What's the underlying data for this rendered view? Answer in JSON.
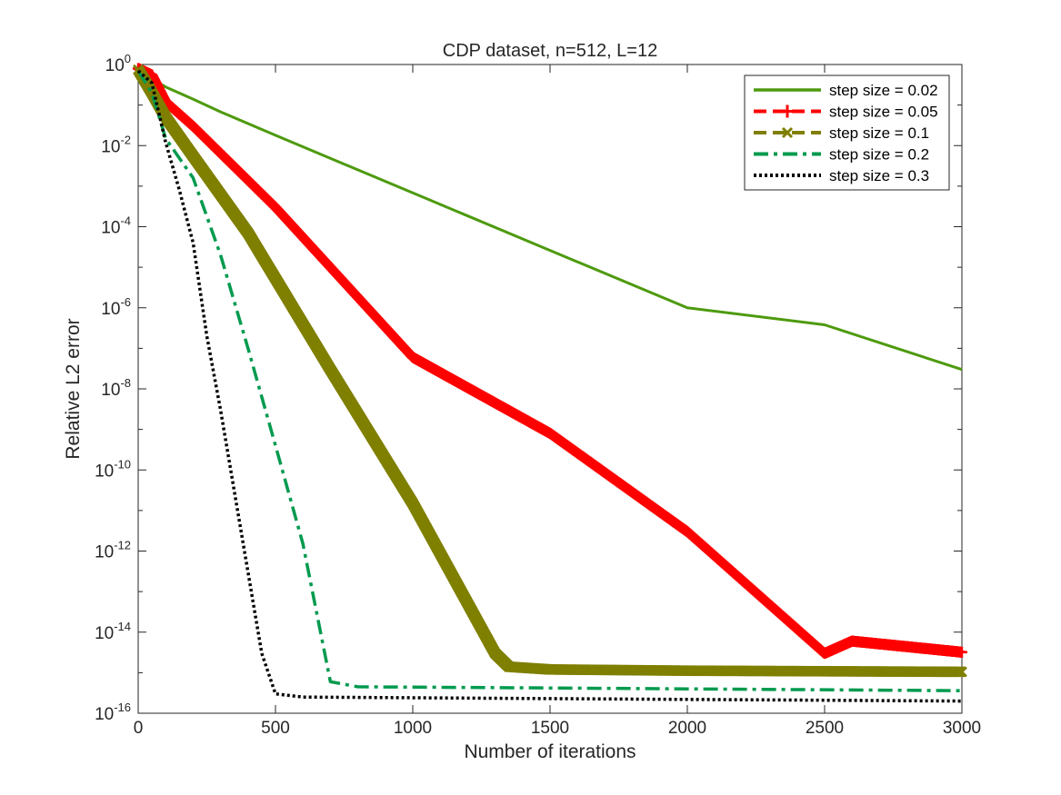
{
  "chart_data": {
    "type": "line",
    "title": "CDP dataset, n=512, L=12",
    "xlabel": "Number of iterations",
    "ylabel": "Relative L2 error",
    "xlim": [
      0,
      3000
    ],
    "ylim_exponent": [
      -16,
      0
    ],
    "yscale": "log",
    "grid": false,
    "legend_position": "top-right",
    "x_ticks": [
      0,
      500,
      1000,
      1500,
      2000,
      2500,
      3000
    ],
    "y_tick_exponents": [
      0,
      -2,
      -4,
      -6,
      -8,
      -10,
      -12,
      -14,
      -16
    ],
    "y_tick_base": "10",
    "series": [
      {
        "name": "step size = 0.02",
        "color": "#4d9a0e",
        "style": "solid",
        "marker": "none",
        "points": [
          [
            0,
            0.7
          ],
          [
            100,
            0.28
          ],
          [
            200,
            0.14
          ],
          [
            300,
            0.068
          ],
          [
            500,
            0.018
          ],
          [
            750,
            0.0035
          ],
          [
            1000,
            0.00068
          ],
          [
            1500,
            2.6e-05
          ],
          [
            2000,
            1e-06
          ],
          [
            2500,
            3.8e-07
          ],
          [
            3000,
            3e-08
          ]
        ]
      },
      {
        "name": "step size = 0.05",
        "color": "#ff0000",
        "style": "dashed",
        "marker": "plus",
        "points": [
          [
            0,
            0.8
          ],
          [
            50,
            0.55
          ],
          [
            100,
            0.12
          ],
          [
            200,
            0.03
          ],
          [
            500,
            0.0003
          ],
          [
            1000,
            6e-08
          ],
          [
            1500,
            8e-10
          ],
          [
            2000,
            3e-12
          ],
          [
            2500,
            3e-15
          ],
          [
            2600,
            6e-15
          ],
          [
            3000,
            3.2e-15
          ]
        ]
      },
      {
        "name": "step size = 0.1",
        "color": "#7f7f00",
        "style": "dashed",
        "marker": "x",
        "points": [
          [
            0,
            0.75
          ],
          [
            50,
            0.2
          ],
          [
            100,
            0.05
          ],
          [
            200,
            0.0055
          ],
          [
            400,
            7e-05
          ],
          [
            700,
            3e-08
          ],
          [
            1000,
            1.5e-11
          ],
          [
            1300,
            3e-15
          ],
          [
            1350,
            1.4e-15
          ],
          [
            1500,
            1.2e-15
          ],
          [
            2000,
            1.12e-15
          ],
          [
            3000,
            1.05e-15
          ]
        ]
      },
      {
        "name": "step size = 0.2",
        "color": "#009a4e",
        "style": "dashdot",
        "marker": "none",
        "points": [
          [
            0,
            0.7
          ],
          [
            50,
            0.2
          ],
          [
            100,
            0.015
          ],
          [
            200,
            0.0016
          ],
          [
            300,
            2e-05
          ],
          [
            400,
            1e-07
          ],
          [
            500,
            4e-10
          ],
          [
            600,
            1.5e-12
          ],
          [
            700,
            6e-16
          ],
          [
            800,
            4.5e-16
          ],
          [
            1500,
            4.2e-16
          ],
          [
            3000,
            3.6e-16
          ]
        ]
      },
      {
        "name": "step size = 0.3",
        "color": "#000000",
        "style": "dotted",
        "marker": "none",
        "points": [
          [
            0,
            0.7
          ],
          [
            50,
            0.35
          ],
          [
            100,
            0.012
          ],
          [
            150,
            0.0008
          ],
          [
            200,
            4e-05
          ],
          [
            250,
            2e-07
          ],
          [
            300,
            3e-09
          ],
          [
            350,
            3e-11
          ],
          [
            400,
            3e-13
          ],
          [
            450,
            3e-15
          ],
          [
            500,
            3e-16
          ],
          [
            600,
            2.5e-16
          ],
          [
            1500,
            2.3e-16
          ],
          [
            3000,
            2e-16
          ]
        ]
      }
    ]
  }
}
